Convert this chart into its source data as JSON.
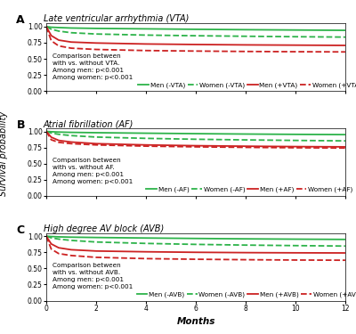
{
  "panels": [
    {
      "label": "A",
      "title": "Late ventricular arrhythmia (VTA)",
      "annotation": "Comparison between\nwith vs. without VTA.\nAmong men: p<0.001\nAmong women: p<0.001",
      "legend_labels": [
        "Men (-VTA)",
        "Women (-VTA)",
        "Men (+VTA)",
        "Women (+VTA)"
      ],
      "curves": {
        "men_neg": {
          "x": [
            0,
            0.2,
            0.5,
            1,
            2,
            4,
            6,
            8,
            10,
            12
          ],
          "y": [
            1.0,
            0.99,
            0.985,
            0.978,
            0.972,
            0.965,
            0.958,
            0.952,
            0.947,
            0.942
          ]
        },
        "women_neg": {
          "x": [
            0,
            0.2,
            0.5,
            1,
            2,
            4,
            6,
            8,
            10,
            12
          ],
          "y": [
            1.0,
            0.96,
            0.93,
            0.905,
            0.885,
            0.868,
            0.858,
            0.85,
            0.843,
            0.837
          ]
        },
        "men_pos": {
          "x": [
            0,
            0.2,
            0.5,
            1,
            2,
            4,
            6,
            8,
            10,
            12
          ],
          "y": [
            1.0,
            0.86,
            0.79,
            0.76,
            0.745,
            0.73,
            0.722,
            0.716,
            0.712,
            0.708
          ]
        },
        "women_pos": {
          "x": [
            0,
            0.2,
            0.5,
            1,
            2,
            4,
            6,
            8,
            10,
            12
          ],
          "y": [
            1.0,
            0.78,
            0.7,
            0.665,
            0.645,
            0.628,
            0.62,
            0.614,
            0.61,
            0.607
          ]
        }
      },
      "ylim": [
        0.0,
        1.05
      ]
    },
    {
      "label": "B",
      "title": "Atrial fibrillation (AF)",
      "annotation": "Comparison between\nwith vs. without AF.\nAmong men: p<0.001\nAmong women: p<0.001",
      "legend_labels": [
        "Men (-AF)",
        "Women (-AF)",
        "Men (+AF)",
        "Women (+AF)"
      ],
      "curves": {
        "men_neg": {
          "x": [
            0,
            0.2,
            0.5,
            1,
            2,
            4,
            6,
            8,
            10,
            12
          ],
          "y": [
            1.0,
            0.995,
            0.99,
            0.985,
            0.98,
            0.972,
            0.965,
            0.959,
            0.954,
            0.95
          ]
        },
        "women_neg": {
          "x": [
            0,
            0.2,
            0.5,
            1,
            2,
            4,
            6,
            8,
            10,
            12
          ],
          "y": [
            1.0,
            0.975,
            0.955,
            0.935,
            0.912,
            0.892,
            0.878,
            0.868,
            0.86,
            0.853
          ]
        },
        "men_pos": {
          "x": [
            0,
            0.2,
            0.5,
            1,
            2,
            4,
            6,
            8,
            10,
            12
          ],
          "y": [
            1.0,
            0.91,
            0.86,
            0.835,
            0.81,
            0.79,
            0.778,
            0.77,
            0.764,
            0.76
          ]
        },
        "women_pos": {
          "x": [
            0,
            0.2,
            0.5,
            1,
            2,
            4,
            6,
            8,
            10,
            12
          ],
          "y": [
            1.0,
            0.87,
            0.83,
            0.81,
            0.79,
            0.771,
            0.76,
            0.752,
            0.746,
            0.742
          ]
        }
      },
      "ylim": [
        0.0,
        1.05
      ]
    },
    {
      "label": "C",
      "title": "High degree AV block (AVB)",
      "annotation": "Comparison between\nwith vs. without AVB.\nAmong men: p<0.001\nAmong women: p<0.001",
      "legend_labels": [
        "Men (-AVB)",
        "Women (-AVB)",
        "Men (+AVB)",
        "Women (+AVB)"
      ],
      "curves": {
        "men_neg": {
          "x": [
            0,
            0.2,
            0.5,
            1,
            2,
            4,
            6,
            8,
            10,
            12
          ],
          "y": [
            1.0,
            0.995,
            0.99,
            0.985,
            0.98,
            0.972,
            0.965,
            0.959,
            0.954,
            0.95
          ]
        },
        "women_neg": {
          "x": [
            0,
            0.2,
            0.5,
            1,
            2,
            4,
            6,
            8,
            10,
            12
          ],
          "y": [
            1.0,
            0.975,
            0.955,
            0.935,
            0.91,
            0.888,
            0.873,
            0.862,
            0.854,
            0.847
          ]
        },
        "men_pos": {
          "x": [
            0,
            0.2,
            0.5,
            1,
            2,
            4,
            6,
            8,
            10,
            12
          ],
          "y": [
            1.0,
            0.88,
            0.82,
            0.79,
            0.77,
            0.758,
            0.75,
            0.745,
            0.742,
            0.74
          ]
        },
        "women_pos": {
          "x": [
            0,
            0.2,
            0.5,
            1,
            2,
            4,
            6,
            8,
            10,
            12
          ],
          "y": [
            1.0,
            0.8,
            0.73,
            0.7,
            0.672,
            0.652,
            0.642,
            0.635,
            0.63,
            0.627
          ]
        }
      },
      "ylim": [
        0.0,
        1.05
      ]
    }
  ],
  "colors": {
    "men_neg": "#2db34a",
    "women_neg": "#2db34a",
    "men_pos": "#cc2222",
    "women_pos": "#cc2222"
  },
  "linestyles": {
    "men_neg": "solid",
    "women_neg": "dashed",
    "men_pos": "solid",
    "women_pos": "dashed"
  },
  "ylabel": "Survival probability",
  "xlabel": "Months",
  "xticks": [
    0,
    2,
    4,
    6,
    8,
    10,
    12
  ],
  "yticks": [
    0.0,
    0.25,
    0.5,
    0.75,
    1.0
  ],
  "linewidth": 1.3,
  "annotation_fontsize": 5.2,
  "title_fontsize": 7.0,
  "tick_fontsize": 5.5,
  "legend_fontsize": 5.2,
  "label_fontsize": 7.5,
  "panel_label_fontsize": 9,
  "background_color": "#ffffff"
}
